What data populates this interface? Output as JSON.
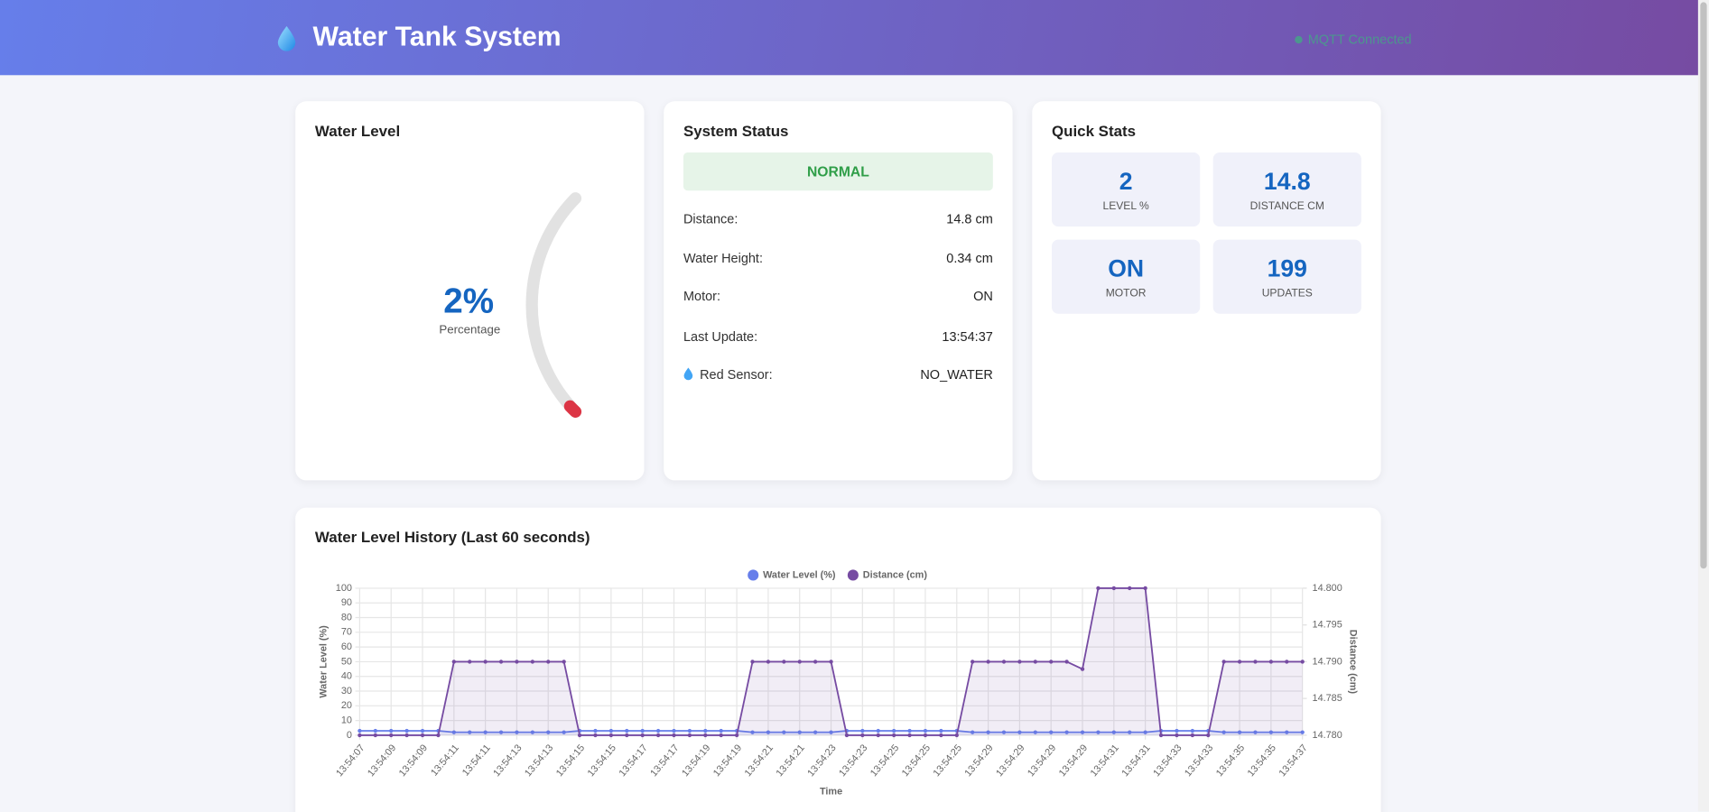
{
  "header": {
    "title": "Water Tank System",
    "status": "MQTT Connected"
  },
  "water_level": {
    "title": "Water Level",
    "display": "2%",
    "caption": "Percentage",
    "gauge_value": 2
  },
  "system_status": {
    "title": "System Status",
    "state": "NORMAL",
    "rows": [
      [
        "Distance:",
        "14.8 cm"
      ],
      [
        "Water Height:",
        "0.34 cm"
      ],
      [
        "Motor:",
        "ON"
      ],
      [
        "Last Update:",
        "13:54:37"
      ],
      [
        "Red Sensor:",
        "NO_WATER"
      ]
    ]
  },
  "quick_stats": {
    "title": "Quick Stats",
    "tiles": [
      {
        "value": "2",
        "label": "LEVEL %"
      },
      {
        "value": "14.8",
        "label": "DISTANCE CM"
      },
      {
        "value": "ON",
        "label": "MOTOR"
      },
      {
        "value": "199",
        "label": "UPDATES"
      }
    ]
  },
  "chart_data": {
    "type": "line",
    "title": "Water Level History (Last 60 seconds)",
    "categories": [
      "13:54:07",
      null,
      "13:54:09",
      null,
      "13:54:09",
      null,
      "13:54:11",
      null,
      "13:54:11",
      null,
      "13:54:13",
      null,
      "13:54:13",
      null,
      "13:54:15",
      null,
      "13:54:15",
      null,
      "13:54:17",
      null,
      "13:54:17",
      null,
      "13:54:19",
      null,
      "13:54:19",
      null,
      "13:54:21",
      null,
      "13:54:21",
      null,
      "13:54:23",
      null,
      "13:54:23",
      null,
      "13:54:25",
      null,
      "13:54:25",
      null,
      "13:54:25",
      null,
      "13:54:29",
      null,
      "13:54:29",
      null,
      "13:54:29",
      null,
      "13:54:29",
      null,
      "13:54:31",
      null,
      "13:54:31",
      null,
      "13:54:33",
      null,
      "13:54:33",
      null,
      "13:54:35",
      null,
      "13:54:35",
      null,
      "13:54:37"
    ],
    "series": [
      {
        "name": "Water Level (%)",
        "color": "#667eea",
        "axis": "y",
        "values": [
          3,
          3,
          3,
          3,
          3,
          3,
          2,
          2,
          2,
          2,
          2,
          2,
          2,
          2,
          3,
          3,
          3,
          3,
          3,
          3,
          3,
          3,
          3,
          3,
          3,
          2,
          2,
          2,
          2,
          2,
          2,
          3,
          3,
          3,
          3,
          3,
          3,
          3,
          3,
          2,
          2,
          2,
          2,
          2,
          2,
          2,
          2,
          2,
          2,
          2,
          2,
          3,
          3,
          3,
          3,
          2,
          2,
          2,
          2,
          2,
          2
        ]
      },
      {
        "name": "Distance (cm)",
        "color": "#764ba2",
        "axis": "y2",
        "values": [
          14.78,
          14.78,
          14.78,
          14.78,
          14.78,
          14.78,
          14.79,
          14.79,
          14.79,
          14.79,
          14.79,
          14.79,
          14.79,
          14.79,
          14.78,
          14.78,
          14.78,
          14.78,
          14.78,
          14.78,
          14.78,
          14.78,
          14.78,
          14.78,
          14.78,
          14.79,
          14.79,
          14.79,
          14.79,
          14.79,
          14.79,
          14.78,
          14.78,
          14.78,
          14.78,
          14.78,
          14.78,
          14.78,
          14.78,
          14.79,
          14.79,
          14.79,
          14.79,
          14.79,
          14.79,
          14.79,
          14.789,
          14.8,
          14.8,
          14.8,
          14.8,
          14.78,
          14.78,
          14.78,
          14.78,
          14.79,
          14.79,
          14.79,
          14.79,
          14.79,
          14.79
        ]
      }
    ],
    "x_label": "Time",
    "y_label": "Water Level (%)",
    "y2_label": "Distance (cm)",
    "ylim": [
      0,
      100
    ],
    "yticks": [
      0,
      10,
      20,
      30,
      40,
      50,
      60,
      70,
      80,
      90,
      100
    ],
    "y2lim": [
      14.78,
      14.8
    ],
    "y2ticks": [
      {
        "value": 14.78,
        "label": "14.780"
      },
      14.785,
      {
        "value": 14.79,
        "label": "14.790"
      },
      14.795,
      {
        "value": 14.8,
        "label": "14.800"
      }
    ],
    "grid": true,
    "legend": "top"
  }
}
